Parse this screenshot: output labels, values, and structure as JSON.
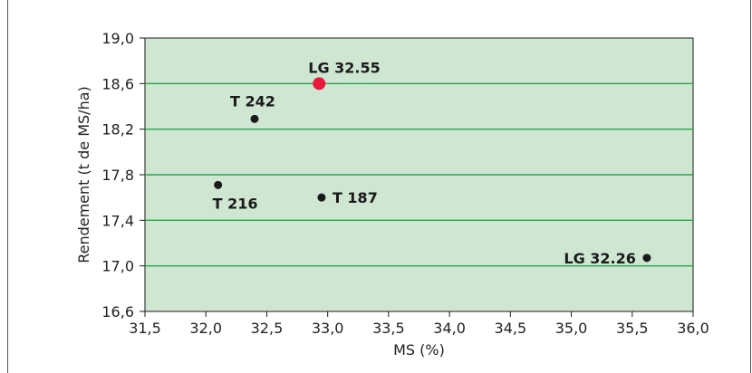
{
  "chart_data": {
    "type": "scatter",
    "xlabel": "MS (%)",
    "ylabel": "Rendement (t de MS/ha)",
    "xlim": [
      31.5,
      36.0
    ],
    "ylim": [
      16.6,
      19.0
    ],
    "x_ticks": [
      31.5,
      32.0,
      32.5,
      33.0,
      33.5,
      34.0,
      34.5,
      35.0,
      35.5,
      36.0
    ],
    "y_ticks": [
      16.6,
      17.0,
      17.4,
      17.8,
      18.2,
      18.6,
      19.0
    ],
    "x_tick_labels": [
      "31,5",
      "32,0",
      "32,5",
      "33,0",
      "33,5",
      "34,0",
      "34,5",
      "35,0",
      "35,5",
      "36,0"
    ],
    "y_tick_labels": [
      "16,6",
      "17,0",
      "17,4",
      "17,8",
      "18,2",
      "18,6",
      "19,0"
    ],
    "grid": "horizontal",
    "points": [
      {
        "label": "LG 32.55",
        "x": 32.93,
        "y": 18.6,
        "highlight": true
      },
      {
        "label": "T 242",
        "x": 32.4,
        "y": 18.29,
        "highlight": false
      },
      {
        "label": "T 216",
        "x": 32.1,
        "y": 17.71,
        "highlight": false
      },
      {
        "label": "T 187",
        "x": 32.95,
        "y": 17.6,
        "highlight": false
      },
      {
        "label": "LG 32.26",
        "x": 35.62,
        "y": 17.07,
        "highlight": false
      }
    ],
    "colors": {
      "plot_background": "#cfe6d2",
      "grid": "#27a34a",
      "point": "#1a1a1a",
      "highlight_point": "#e8193c"
    }
  }
}
